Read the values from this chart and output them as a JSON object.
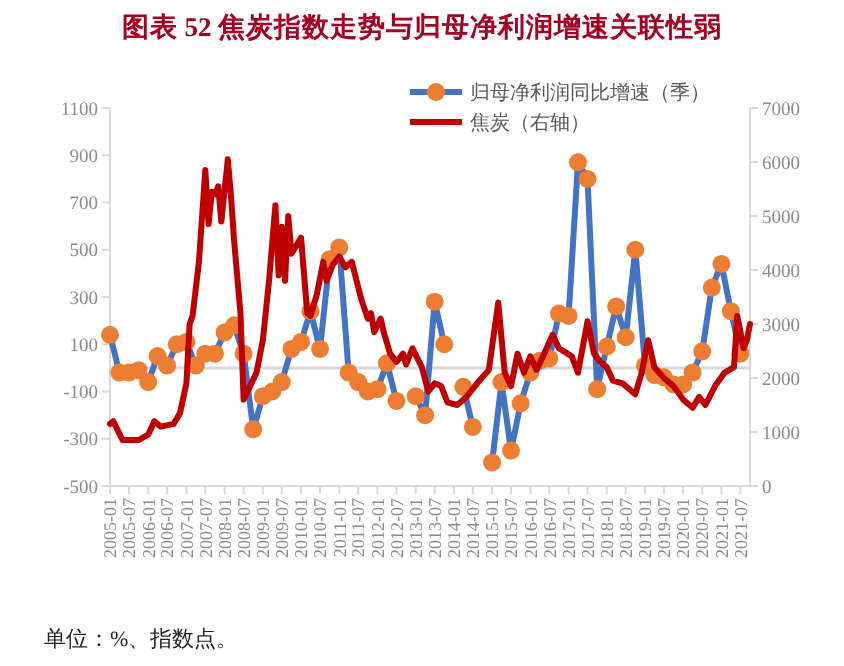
{
  "chart_data": {
    "type": "line",
    "title": "图表 52 焦炭指数走势与归母净利润增速关联性弱",
    "annotations": [
      "单位：%、指数点。"
    ],
    "xlim": [
      "2005-01",
      "2021-10"
    ],
    "xticks": [
      "2005-01",
      "2005-07",
      "2006-01",
      "2006-07",
      "2007-01",
      "2007-07",
      "2008-01",
      "2008-07",
      "2009-01",
      "2009-07",
      "2010-01",
      "2010-07",
      "2011-01",
      "2011-07",
      "2012-01",
      "2012-07",
      "2013-01",
      "2013-07",
      "2014-01",
      "2014-07",
      "2015-01",
      "2015-07",
      "2016-01",
      "2016-07",
      "2017-01",
      "2017-07",
      "2018-01",
      "2018-07",
      "2019-01",
      "2019-07",
      "2020-01",
      "2020-07",
      "2021-01",
      "2021-07"
    ],
    "ylim": [
      -500,
      1100
    ],
    "yticks": [
      -500,
      -300,
      -100,
      100,
      300,
      500,
      700,
      900,
      1100
    ],
    "y2lim": [
      0,
      7000
    ],
    "y2ticks": [
      0,
      1000,
      2000,
      3000,
      4000,
      5000,
      6000,
      7000
    ],
    "grid": false,
    "legend": "top",
    "ref_lines": [
      {
        "axis": "y",
        "value": 0,
        "color": "#d9d9d9"
      }
    ],
    "series": [
      {
        "name": "归母净利润同比增速（季）",
        "color": "#4472c4",
        "marker": "circle",
        "axis": "y",
        "x": [
          "2005-01",
          "2005-04",
          "2005-07",
          "2005-10",
          "2006-01",
          "2006-04",
          "2006-07",
          "2006-10",
          "2007-01",
          "2007-04",
          "2007-07",
          "2007-10",
          "2008-01",
          "2008-04",
          "2008-07",
          "2008-10",
          "2009-01",
          "2009-04",
          "2009-07",
          "2009-10",
          "2010-01",
          "2010-04",
          "2010-07",
          "2010-10",
          "2011-01",
          "2011-04",
          "2011-07",
          "2011-10",
          "2012-01",
          "2012-04",
          "2012-07",
          "2012-10",
          "2013-01",
          "2013-04",
          "2013-07",
          "2013-10",
          "2014-01",
          "2014-04",
          "2014-07",
          "2014-10",
          "2015-01",
          "2015-04",
          "2015-07",
          "2015-10",
          "2016-01",
          "2016-04",
          "2016-07",
          "2016-10",
          "2017-01",
          "2017-04",
          "2017-07",
          "2017-10",
          "2018-01",
          "2018-04",
          "2018-07",
          "2018-10",
          "2019-01",
          "2019-04",
          "2019-07",
          "2019-10",
          "2020-01",
          "2020-04",
          "2020-07",
          "2020-10",
          "2021-01",
          "2021-04",
          "2021-07"
        ],
        "values": [
          140,
          -20,
          -20,
          -10,
          -60,
          50,
          10,
          100,
          110,
          10,
          60,
          60,
          150,
          180,
          60,
          -260,
          -120,
          -100,
          -60,
          80,
          110,
          240,
          80,
          460,
          510,
          -20,
          -60,
          -100,
          -90,
          20,
          -140,
          null,
          -120,
          -200,
          280,
          100,
          null,
          -80,
          -250,
          null,
          -400,
          -60,
          -350,
          -150,
          -20,
          30,
          40,
          230,
          220,
          870,
          800,
          -90,
          90,
          260,
          130,
          500,
          10,
          -30,
          -40,
          -70,
          -70,
          -20,
          70,
          340,
          440,
          240,
          60
        ]
      },
      {
        "name": "焦炭（右轴）",
        "color": "#c00000",
        "marker": "none",
        "axis": "y2",
        "x": [
          "2005-01",
          "2005-02",
          "2005-05",
          "2005-08",
          "2005-10",
          "2006-01",
          "2006-03",
          "2006-05",
          "2006-09",
          "2006-11",
          "2007-01",
          "2007-02",
          "2007-03",
          "2007-05",
          "2007-07",
          "2007-08",
          "2007-09",
          "2007-10",
          "2007-11",
          "2007-12",
          "2008-02",
          "2008-03",
          "2008-04",
          "2008-06",
          "2008-07",
          "2008-09",
          "2008-11",
          "2009-01",
          "2009-03",
          "2009-05",
          "2009-06",
          "2009-07",
          "2009-08",
          "2009-09",
          "2009-10",
          "2010-01",
          "2010-03",
          "2010-04",
          "2010-06",
          "2010-08",
          "2010-09",
          "2010-11",
          "2011-01",
          "2011-03",
          "2011-05",
          "2011-08",
          "2011-10",
          "2011-11",
          "2011-12",
          "2012-02",
          "2012-03",
          "2012-05",
          "2012-07",
          "2012-09",
          "2012-10",
          "2012-12",
          "2013-03",
          "2013-05",
          "2013-07",
          "2013-09",
          "2013-11",
          "2014-02",
          "2014-05",
          "2014-09",
          "2014-12",
          "2015-03",
          "2015-05",
          "2015-07",
          "2015-09",
          "2015-11",
          "2016-01",
          "2016-03",
          "2016-05",
          "2016-08",
          "2016-10",
          "2017-02",
          "2017-04",
          "2017-07",
          "2017-09",
          "2017-11",
          "2018-01",
          "2018-03",
          "2018-06",
          "2018-10",
          "2018-12",
          "2019-02",
          "2019-04",
          "2019-07",
          "2019-10",
          "2020-01",
          "2020-04",
          "2020-06",
          "2020-08",
          "2020-11",
          "2021-02",
          "2021-05",
          "2021-06",
          "2021-08",
          "2021-09",
          "2021-10"
        ],
        "values": [
          1150,
          1200,
          850,
          850,
          850,
          950,
          1200,
          1100,
          1150,
          1350,
          1900,
          3000,
          3150,
          4150,
          5850,
          4850,
          5450,
          5400,
          5550,
          4900,
          6050,
          5400,
          4550,
          3200,
          1600,
          1850,
          2100,
          2700,
          3800,
          5200,
          3900,
          4800,
          3800,
          5000,
          4300,
          4600,
          3200,
          3150,
          3550,
          4150,
          3800,
          4100,
          4250,
          4050,
          4150,
          3450,
          3100,
          3200,
          2850,
          3100,
          2850,
          2450,
          2300,
          2450,
          2250,
          2550,
          2200,
          1750,
          1900,
          1850,
          1550,
          1500,
          1650,
          1950,
          2150,
          3400,
          2100,
          1850,
          2450,
          2100,
          2400,
          2150,
          2400,
          2800,
          2550,
          2400,
          2100,
          3050,
          2450,
          2300,
          2200,
          1950,
          1900,
          1700,
          2100,
          2700,
          2200,
          2000,
          1850,
          1600,
          1450,
          1650,
          1500,
          1850,
          2100,
          2200,
          3150,
          2550,
          2700,
          3000
        ]
      }
    ]
  }
}
